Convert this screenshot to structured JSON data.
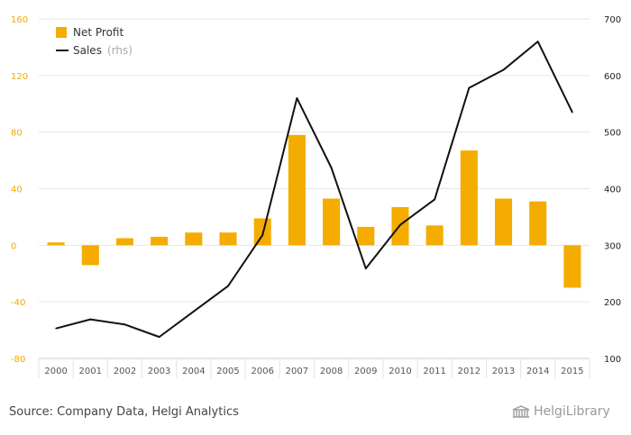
{
  "chart_data": {
    "type": "bar+line",
    "categories": [
      "2000",
      "2001",
      "2002",
      "2003",
      "2004",
      "2005",
      "2006",
      "2007",
      "2008",
      "2009",
      "2010",
      "2011",
      "2012",
      "2013",
      "2014",
      "2015"
    ],
    "series": [
      {
        "name": "Net Profit",
        "type": "bar",
        "axis": "left",
        "values": [
          2,
          -14,
          5,
          6,
          9,
          9,
          19,
          78,
          33,
          13,
          27,
          14,
          67,
          33,
          31,
          -30
        ]
      },
      {
        "name": "Sales",
        "type": "line",
        "axis": "right",
        "values": [
          153,
          169,
          160,
          138,
          183,
          228,
          318,
          560,
          437,
          259,
          336,
          381,
          578,
          610,
          660,
          535
        ]
      }
    ],
    "left_axis": {
      "min": -80,
      "max": 160,
      "ticks": [
        "-80",
        "-40",
        "0",
        "40",
        "80",
        "120",
        "160"
      ]
    },
    "right_axis": {
      "min": 100,
      "max": 700,
      "ticks": [
        "100",
        "200",
        "300",
        "400",
        "500",
        "600",
        "700"
      ]
    },
    "legend": {
      "position": "top-left",
      "items": [
        {
          "label": "Net Profit",
          "note": ""
        },
        {
          "label": "Sales",
          "note": "(rhs)"
        }
      ]
    },
    "grid": "horizontal",
    "colors": {
      "bar": "#f5ac00",
      "line": "#111111",
      "grid": "#e6e6e6",
      "left_ticks": "#f2a900"
    }
  },
  "footer": {
    "source": "Source: Company Data, Helgi Analytics",
    "logo_text": "HelgiLibrary"
  }
}
